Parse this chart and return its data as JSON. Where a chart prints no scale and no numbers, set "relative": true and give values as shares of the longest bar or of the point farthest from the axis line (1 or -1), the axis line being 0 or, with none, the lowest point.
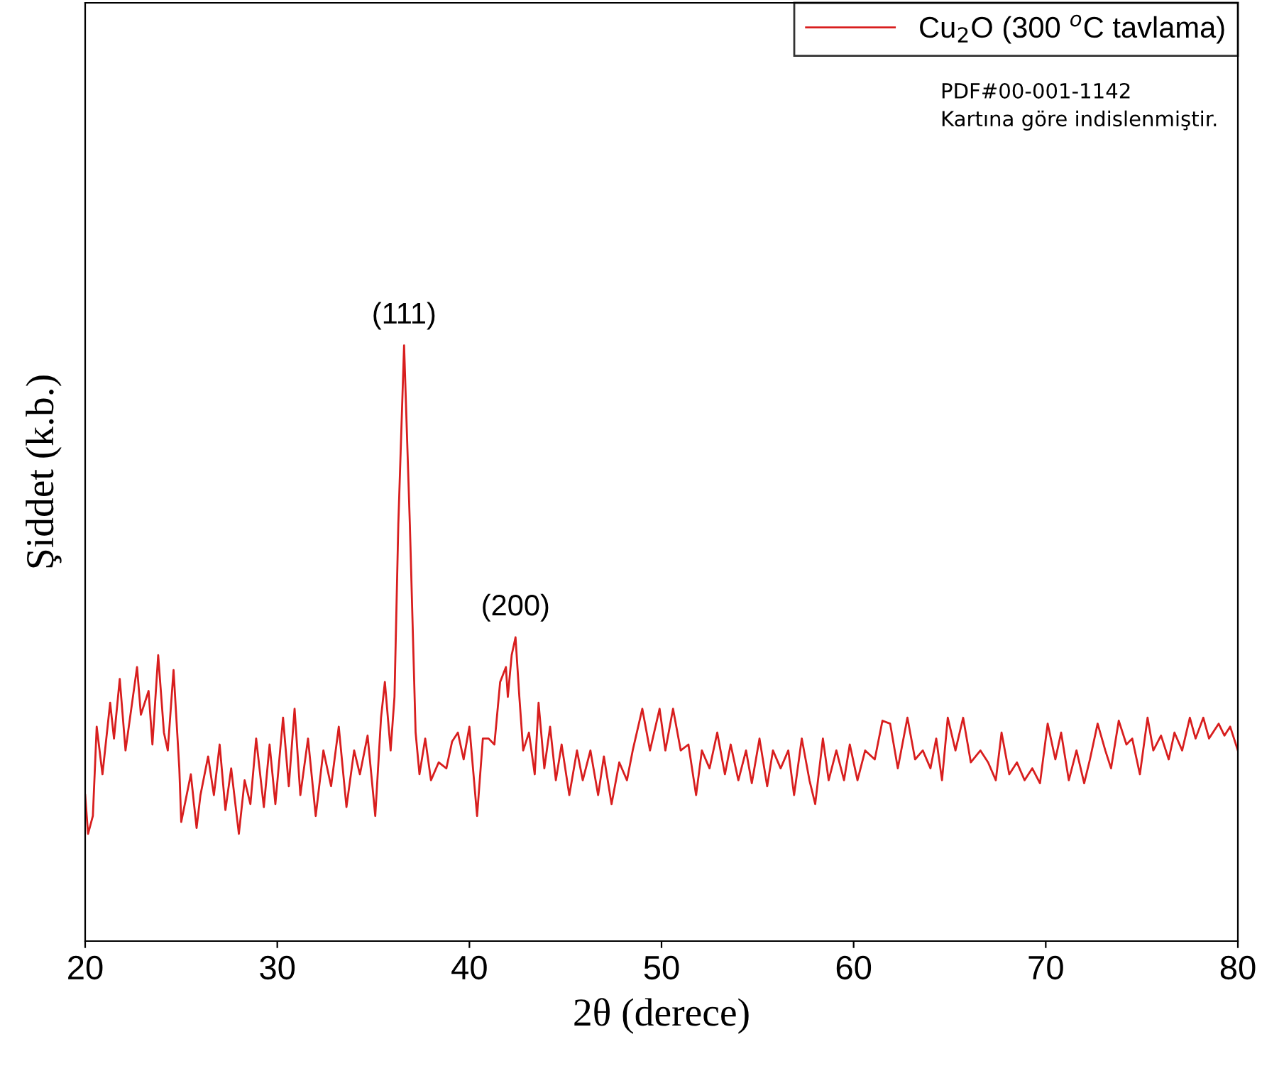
{
  "chart_data": {
    "type": "line",
    "relative": true,
    "xlabel": "2θ (derece)",
    "ylabel": "Şiddet (k.b.)",
    "xlim": [
      20,
      80
    ],
    "xticks": [
      20,
      30,
      40,
      50,
      60,
      70,
      80
    ],
    "legend": "top right",
    "grid": false,
    "tick_labels": "x",
    "annotations": [
      {
        "text": "(111)",
        "x": 36.6,
        "y": 1.0
      },
      {
        "text": "(200)",
        "x": 42.4,
        "y": 0.51
      },
      "PDF#00-001-1142\nKartına göre indislenmiştir."
    ],
    "series": [
      {
        "name": "Cu$_{2}$O (300 $^{o}$C tavlama)",
        "color": "#d81e1e",
        "x": [
          20.0,
          20.15,
          20.4,
          20.6,
          20.9,
          21.3,
          21.5,
          21.8,
          22.1,
          22.4,
          22.7,
          22.9,
          23.3,
          23.5,
          23.8,
          24.1,
          24.3,
          24.6,
          24.9,
          25.0,
          25.5,
          25.8,
          26.0,
          26.4,
          26.7,
          27.0,
          27.3,
          27.6,
          28.0,
          28.3,
          28.6,
          28.9,
          29.3,
          29.6,
          29.9,
          30.3,
          30.6,
          30.9,
          31.2,
          31.6,
          32.0,
          32.4,
          32.8,
          33.2,
          33.6,
          34.0,
          34.3,
          34.7,
          35.1,
          35.4,
          35.6,
          35.9,
          36.1,
          36.3,
          36.6,
          36.9,
          37.2,
          37.4,
          37.7,
          38.0,
          38.4,
          38.8,
          39.1,
          39.4,
          39.7,
          40.0,
          40.4,
          40.7,
          41.0,
          41.3,
          41.6,
          41.9,
          42.0,
          42.2,
          42.4,
          42.6,
          42.8,
          43.1,
          43.4,
          43.6,
          43.9,
          44.2,
          44.5,
          44.8,
          45.2,
          45.6,
          45.9,
          46.3,
          46.7,
          47.0,
          47.4,
          47.8,
          48.2,
          48.5,
          49.0,
          49.4,
          49.9,
          50.2,
          50.6,
          51.0,
          51.4,
          51.8,
          52.1,
          52.5,
          52.9,
          53.3,
          53.6,
          54.0,
          54.4,
          54.7,
          55.1,
          55.5,
          55.8,
          56.2,
          56.6,
          56.9,
          57.3,
          57.7,
          58.0,
          58.4,
          58.7,
          59.1,
          59.5,
          59.8,
          60.2,
          60.6,
          61.1,
          61.5,
          61.9,
          62.3,
          62.8,
          63.2,
          63.6,
          64.0,
          64.3,
          64.6,
          64.9,
          65.3,
          65.7,
          66.1,
          66.6,
          67.0,
          67.4,
          67.7,
          68.1,
          68.5,
          68.9,
          69.3,
          69.7,
          70.1,
          70.5,
          70.8,
          71.2,
          71.6,
          72.0,
          72.3,
          72.7,
          73.1,
          73.4,
          73.8,
          74.2,
          74.5,
          74.9,
          75.3,
          75.6,
          76.0,
          76.4,
          76.7,
          77.1,
          77.5,
          77.8,
          78.2,
          78.5,
          79.0,
          79.3,
          79.6,
          80.0
        ],
        "values": [
          0.245,
          0.18,
          0.21,
          0.36,
          0.28,
          0.4,
          0.34,
          0.44,
          0.32,
          0.39,
          0.46,
          0.38,
          0.42,
          0.33,
          0.48,
          0.35,
          0.32,
          0.455,
          0.29,
          0.2,
          0.28,
          0.19,
          0.245,
          0.31,
          0.245,
          0.33,
          0.22,
          0.29,
          0.18,
          0.27,
          0.23,
          0.34,
          0.225,
          0.33,
          0.23,
          0.375,
          0.26,
          0.39,
          0.245,
          0.34,
          0.21,
          0.32,
          0.26,
          0.36,
          0.225,
          0.32,
          0.28,
          0.345,
          0.21,
          0.375,
          0.435,
          0.32,
          0.41,
          0.7,
          1.0,
          0.7,
          0.35,
          0.28,
          0.34,
          0.27,
          0.3,
          0.29,
          0.335,
          0.35,
          0.305,
          0.36,
          0.21,
          0.34,
          0.34,
          0.33,
          0.435,
          0.46,
          0.41,
          0.48,
          0.51,
          0.41,
          0.32,
          0.35,
          0.28,
          0.4,
          0.29,
          0.36,
          0.27,
          0.33,
          0.245,
          0.32,
          0.27,
          0.32,
          0.245,
          0.31,
          0.23,
          0.3,
          0.27,
          0.32,
          0.39,
          0.32,
          0.39,
          0.32,
          0.39,
          0.32,
          0.33,
          0.245,
          0.32,
          0.29,
          0.35,
          0.28,
          0.33,
          0.27,
          0.32,
          0.265,
          0.34,
          0.26,
          0.32,
          0.29,
          0.32,
          0.245,
          0.34,
          0.27,
          0.23,
          0.34,
          0.27,
          0.32,
          0.27,
          0.33,
          0.27,
          0.32,
          0.305,
          0.37,
          0.365,
          0.29,
          0.375,
          0.305,
          0.32,
          0.29,
          0.34,
          0.27,
          0.375,
          0.32,
          0.375,
          0.3,
          0.32,
          0.3,
          0.27,
          0.35,
          0.28,
          0.3,
          0.27,
          0.29,
          0.265,
          0.365,
          0.305,
          0.35,
          0.27,
          0.32,
          0.265,
          0.305,
          0.365,
          0.32,
          0.29,
          0.37,
          0.33,
          0.34,
          0.28,
          0.375,
          0.32,
          0.345,
          0.305,
          0.35,
          0.32,
          0.375,
          0.34,
          0.375,
          0.34,
          0.365,
          0.345,
          0.36,
          0.32
        ]
      }
    ]
  }
}
